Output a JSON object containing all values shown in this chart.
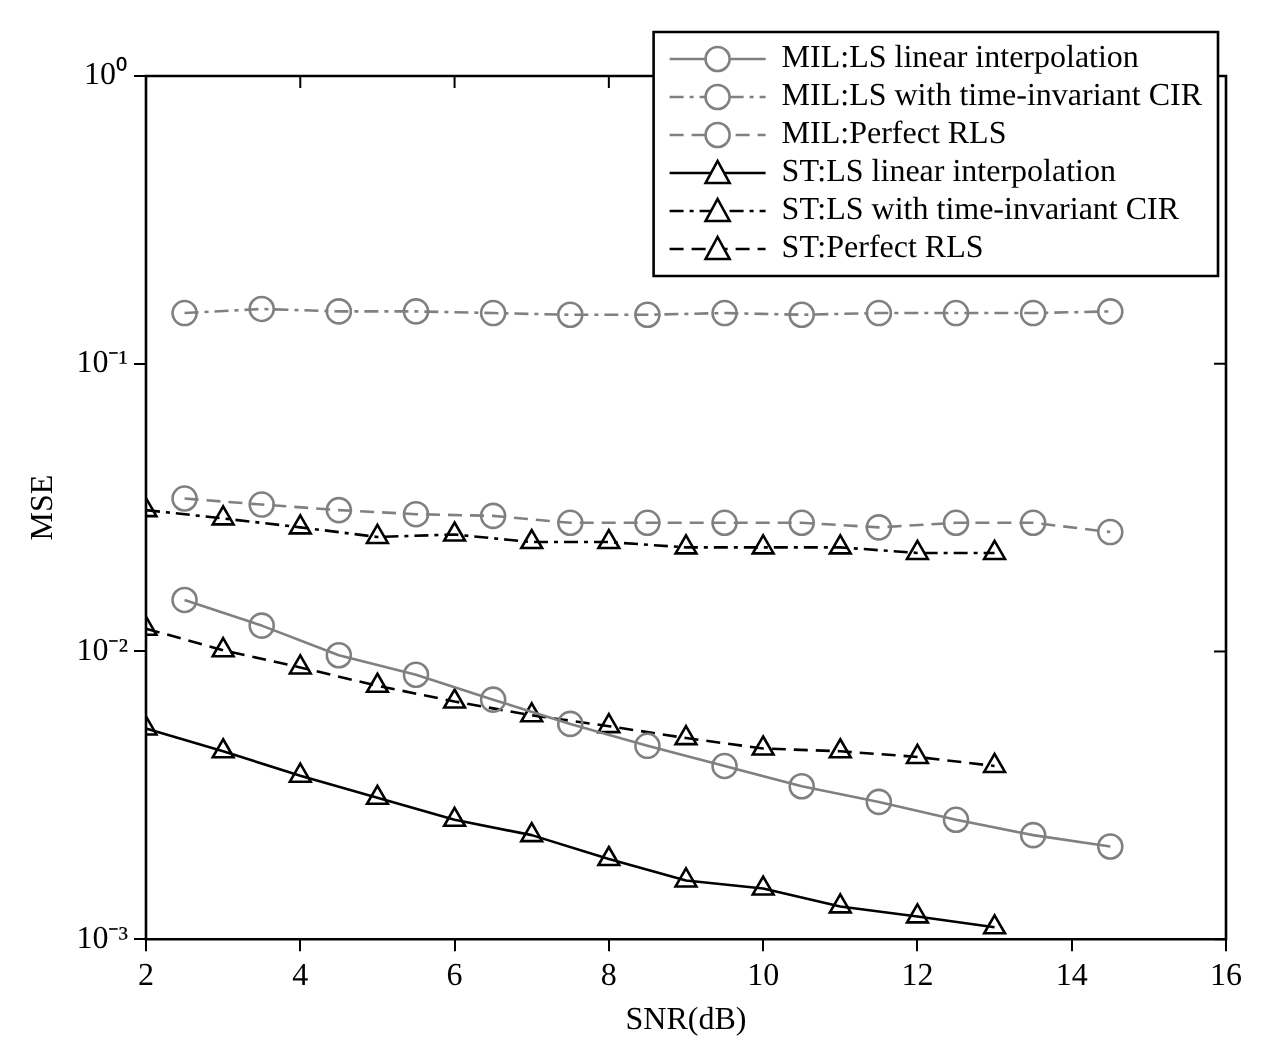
{
  "chart_data": {
    "type": "line",
    "xlabel": "SNR(dB)",
    "ylabel": "MSE",
    "log": "y",
    "grid": false,
    "legend": "top right",
    "xlim": [
      2,
      16
    ],
    "xticks": [
      2,
      4,
      6,
      8,
      10,
      12,
      14,
      16
    ],
    "ylim": [
      0.001,
      1
    ],
    "yticks": [
      {
        "value": 0.001,
        "label": "10⁻³"
      },
      {
        "value": 0.01,
        "label": "10⁻²"
      },
      {
        "value": 0.1,
        "label": "10⁻¹"
      },
      {
        "value": 1,
        "label": "10⁰"
      }
    ],
    "series": [
      {
        "name": "MIL:LS linear interpolation",
        "color": "#808080",
        "marker": "circle",
        "line_style": "solid",
        "x": [
          2.5,
          3.5,
          4.5,
          5.5,
          6.5,
          7.5,
          8.5,
          9.5,
          10.5,
          11.5,
          12.5,
          13.5,
          14.5
        ],
        "values": [
          0.0151,
          0.0123,
          0.0097,
          0.0083,
          0.0068,
          0.0056,
          0.0047,
          0.004,
          0.0034,
          0.003,
          0.0026,
          0.0023,
          0.0021
        ]
      },
      {
        "name": "MIL:LS with time-invariant CIR",
        "color": "#808080",
        "marker": "circle",
        "line_style": "dashdot",
        "x": [
          2.5,
          3.5,
          4.5,
          5.5,
          6.5,
          7.5,
          8.5,
          9.5,
          10.5,
          11.5,
          12.5,
          13.5,
          14.5
        ],
        "values": [
          0.15,
          0.155,
          0.152,
          0.152,
          0.15,
          0.148,
          0.148,
          0.15,
          0.148,
          0.15,
          0.15,
          0.15,
          0.152
        ]
      },
      {
        "name": "MIL:Perfect RLS",
        "color": "#808080",
        "marker": "circle",
        "line_style": "dashed",
        "x": [
          2.5,
          3.5,
          4.5,
          5.5,
          6.5,
          7.5,
          8.5,
          9.5,
          10.5,
          11.5,
          12.5,
          13.5,
          14.5
        ],
        "values": [
          0.034,
          0.0324,
          0.031,
          0.03,
          0.0296,
          0.028,
          0.028,
          0.028,
          0.028,
          0.027,
          0.028,
          0.028,
          0.026
        ]
      },
      {
        "name": "ST:LS linear interpolation",
        "color": "#000000",
        "marker": "triangle",
        "line_style": "solid",
        "x": [
          2,
          3,
          4,
          5,
          6,
          7,
          8,
          9,
          10,
          11,
          12,
          13
        ],
        "values": [
          0.0054,
          0.0045,
          0.0037,
          0.0031,
          0.0026,
          0.0023,
          0.0019,
          0.0016,
          0.0015,
          0.0013,
          0.0012,
          0.0011
        ]
      },
      {
        "name": "ST:LS with time-invariant CIR",
        "color": "#000000",
        "marker": "triangle",
        "line_style": "dashdot",
        "x": [
          2,
          3,
          4,
          5,
          6,
          7,
          8,
          9,
          10,
          11,
          12,
          13
        ],
        "values": [
          0.031,
          0.029,
          0.027,
          0.025,
          0.0255,
          0.024,
          0.024,
          0.023,
          0.023,
          0.023,
          0.022,
          0.022
        ]
      },
      {
        "name": "ST:Perfect RLS",
        "color": "#000000",
        "marker": "triangle",
        "line_style": "dashed",
        "x": [
          2,
          3,
          4,
          5,
          6,
          7,
          8,
          9,
          10,
          11,
          12,
          13
        ],
        "values": [
          0.012,
          0.0101,
          0.0088,
          0.0076,
          0.0067,
          0.006,
          0.0055,
          0.005,
          0.0046,
          0.0045,
          0.0043,
          0.004
        ]
      }
    ]
  }
}
